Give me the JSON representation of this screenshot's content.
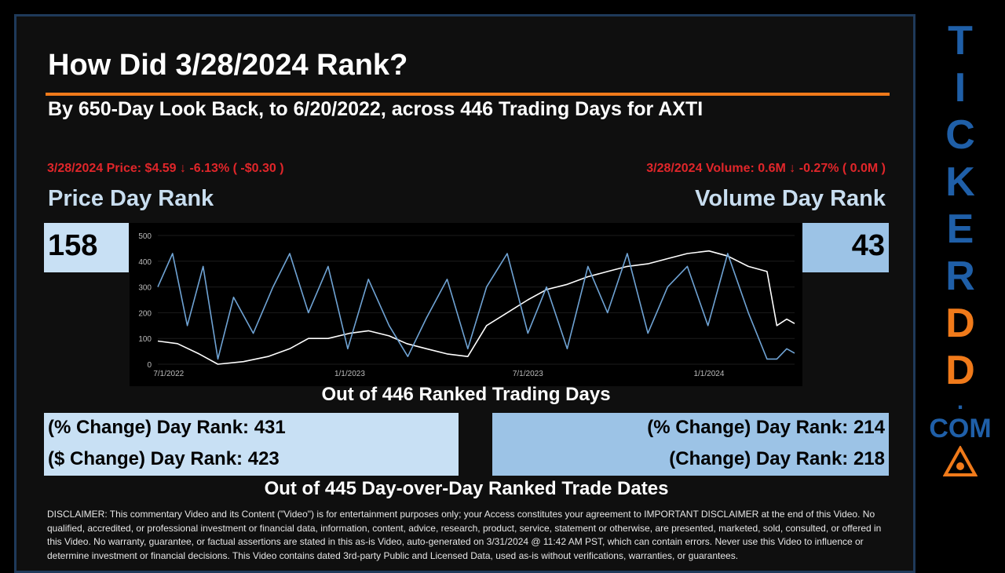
{
  "header": {
    "title": "How Did 3/28/2024 Rank?",
    "subtitle": "By 650-Day Look Back, to 6/20/2022, across 446 Trading Days for AXTI"
  },
  "price": {
    "summary": "3/28/2024 Price: $4.59 ↓ -6.13% ( -$0.30 )",
    "label": "Price Day Rank",
    "rank": "158",
    "pct_change_rank": "(% Change) Day Rank: 431",
    "dollar_change_rank": "($ Change) Day Rank: 423"
  },
  "volume": {
    "summary": "3/28/2024 Volume: 0.6M ↓ -0.27% ( 0.0M )",
    "label": "Volume Day Rank",
    "rank": "43",
    "pct_change_rank": "(% Change) Day Rank: 214",
    "change_rank": "(Change) Day Rank: 218"
  },
  "captions": {
    "ranked_days": "Out of 446 Ranked Trading Days",
    "ranked_dates": "Out of 445 Day-over-Day Ranked Trade Dates"
  },
  "disclaimer": "DISCLAIMER: This commentary Video and its Content (\"Video\") is for entertainment purposes only; your Access constitutes your agreement to IMPORTANT DISCLAIMER at the end of this Video. No qualified, accredited, or professional investment or financial data, information, content, advice, research, product, service, statement or otherwise, are presented, marketed, sold, consulted, or offered in this Video. No warranty, guarantee, or factual assertions are stated in this as-is Video, auto-generated on 3/31/2024 @ 11:42 AM PST, which can contain errors. Never use this Video to influence or determine investment or financial decisions. This Video contains dated 3rd-party Public and Licensed Data, used as-is without verifications, warranties, or guarantees.",
  "brand": {
    "letters_blue": [
      "T",
      "I",
      "C",
      "K",
      "E",
      "R"
    ],
    "letters_orange": [
      "D",
      "D"
    ],
    "dot": ".",
    "com": "COM"
  },
  "colors": {
    "accent_orange": "#f07a1a",
    "brand_blue": "#1f5fa8",
    "alert_red": "#e0262a",
    "price_box": "#c8e0f4",
    "volume_box": "#9cc3e6",
    "price_series": "#ffffff",
    "volume_series": "#6fa3d4"
  },
  "chart_data": {
    "type": "line",
    "title": "",
    "xlabel": "",
    "ylabel": "",
    "ylim": [
      0,
      500
    ],
    "yticks": [
      0,
      100,
      200,
      300,
      400,
      500
    ],
    "xlim": [
      "2022-06-20",
      "2024-03-28"
    ],
    "xticks": [
      {
        "date": "2022-07-01",
        "label": "7/1/2022"
      },
      {
        "date": "2023-01-01",
        "label": "1/1/2023"
      },
      {
        "date": "2023-07-01",
        "label": "7/1/2023"
      },
      {
        "date": "2024-01-01",
        "label": "1/1/2024"
      }
    ],
    "series": [
      {
        "key": "price_rank",
        "x": [
          "2022-06-20",
          "2022-07-10",
          "2022-08-01",
          "2022-08-20",
          "2022-09-15",
          "2022-10-10",
          "2022-11-01",
          "2022-11-20",
          "2022-12-10",
          "2023-01-01",
          "2023-01-20",
          "2023-02-10",
          "2023-02-28",
          "2023-03-20",
          "2023-04-10",
          "2023-05-01",
          "2023-05-20",
          "2023-06-10",
          "2023-07-01",
          "2023-07-20",
          "2023-08-10",
          "2023-08-31",
          "2023-09-20",
          "2023-10-10",
          "2023-10-31",
          "2023-11-20",
          "2023-12-10",
          "2024-01-01",
          "2024-01-20",
          "2024-02-10",
          "2024-02-29",
          "2024-03-10",
          "2024-03-20",
          "2024-03-28"
        ],
        "values": [
          90,
          80,
          40,
          0,
          10,
          30,
          60,
          100,
          100,
          120,
          130,
          110,
          80,
          60,
          40,
          30,
          150,
          200,
          250,
          290,
          310,
          340,
          360,
          380,
          390,
          410,
          430,
          440,
          420,
          380,
          360,
          150,
          175,
          158
        ]
      },
      {
        "key": "volume_rank",
        "x": [
          "2022-06-20",
          "2022-07-05",
          "2022-07-20",
          "2022-08-05",
          "2022-08-20",
          "2022-09-05",
          "2022-09-25",
          "2022-10-15",
          "2022-11-01",
          "2022-11-20",
          "2022-12-10",
          "2022-12-30",
          "2023-01-20",
          "2023-02-10",
          "2023-03-01",
          "2023-03-20",
          "2023-04-10",
          "2023-05-01",
          "2023-05-20",
          "2023-06-10",
          "2023-07-01",
          "2023-07-20",
          "2023-08-10",
          "2023-08-31",
          "2023-09-20",
          "2023-10-10",
          "2023-10-31",
          "2023-11-20",
          "2023-12-10",
          "2023-12-31",
          "2024-01-20",
          "2024-02-10",
          "2024-02-29",
          "2024-03-10",
          "2024-03-20",
          "2024-03-28"
        ],
        "values": [
          300,
          430,
          150,
          380,
          20,
          260,
          120,
          300,
          430,
          200,
          380,
          60,
          330,
          150,
          30,
          180,
          330,
          60,
          300,
          430,
          120,
          300,
          60,
          380,
          200,
          430,
          120,
          300,
          380,
          150,
          430,
          200,
          20,
          20,
          60,
          43
        ]
      }
    ]
  }
}
